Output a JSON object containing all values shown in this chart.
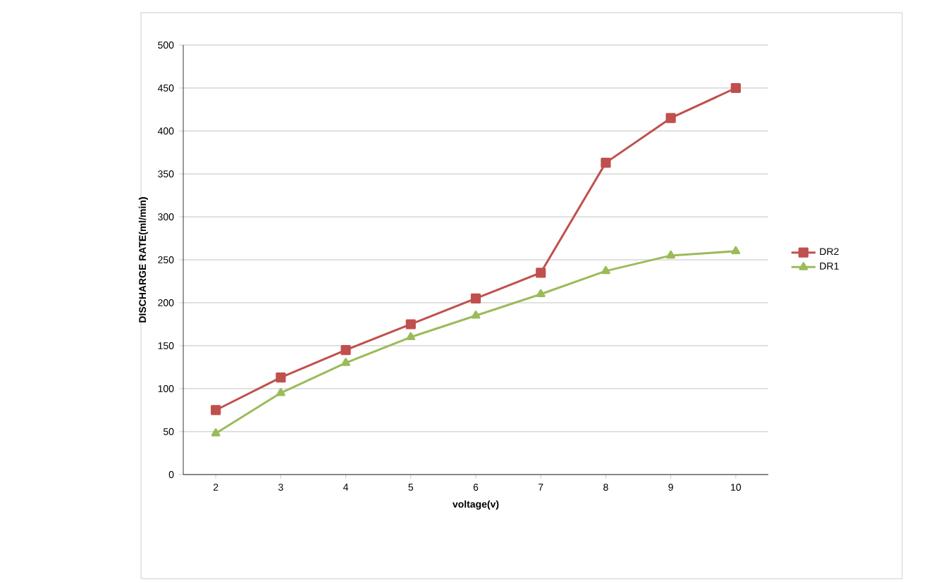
{
  "chart_data": {
    "type": "line",
    "xlabel": "voltage(v)",
    "ylabel": "DISCHARGE RATE(ml/min)",
    "categories": [
      "2",
      "3",
      "4",
      "5",
      "6",
      "7",
      "8",
      "9",
      "10"
    ],
    "series": [
      {
        "name": "DR2",
        "color": "#c0504d",
        "marker": "square",
        "values": [
          75,
          113,
          145,
          175,
          205,
          235,
          363,
          415,
          450
        ]
      },
      {
        "name": "DR1",
        "color": "#9bbb59",
        "marker": "triangle",
        "values": [
          48,
          95,
          130,
          160,
          185,
          210,
          237,
          255,
          260
        ]
      }
    ],
    "ylim": [
      0,
      500
    ],
    "yticks": [
      0,
      50,
      100,
      150,
      200,
      250,
      300,
      350,
      400,
      450,
      500
    ],
    "grid": "y",
    "legend": "right"
  }
}
